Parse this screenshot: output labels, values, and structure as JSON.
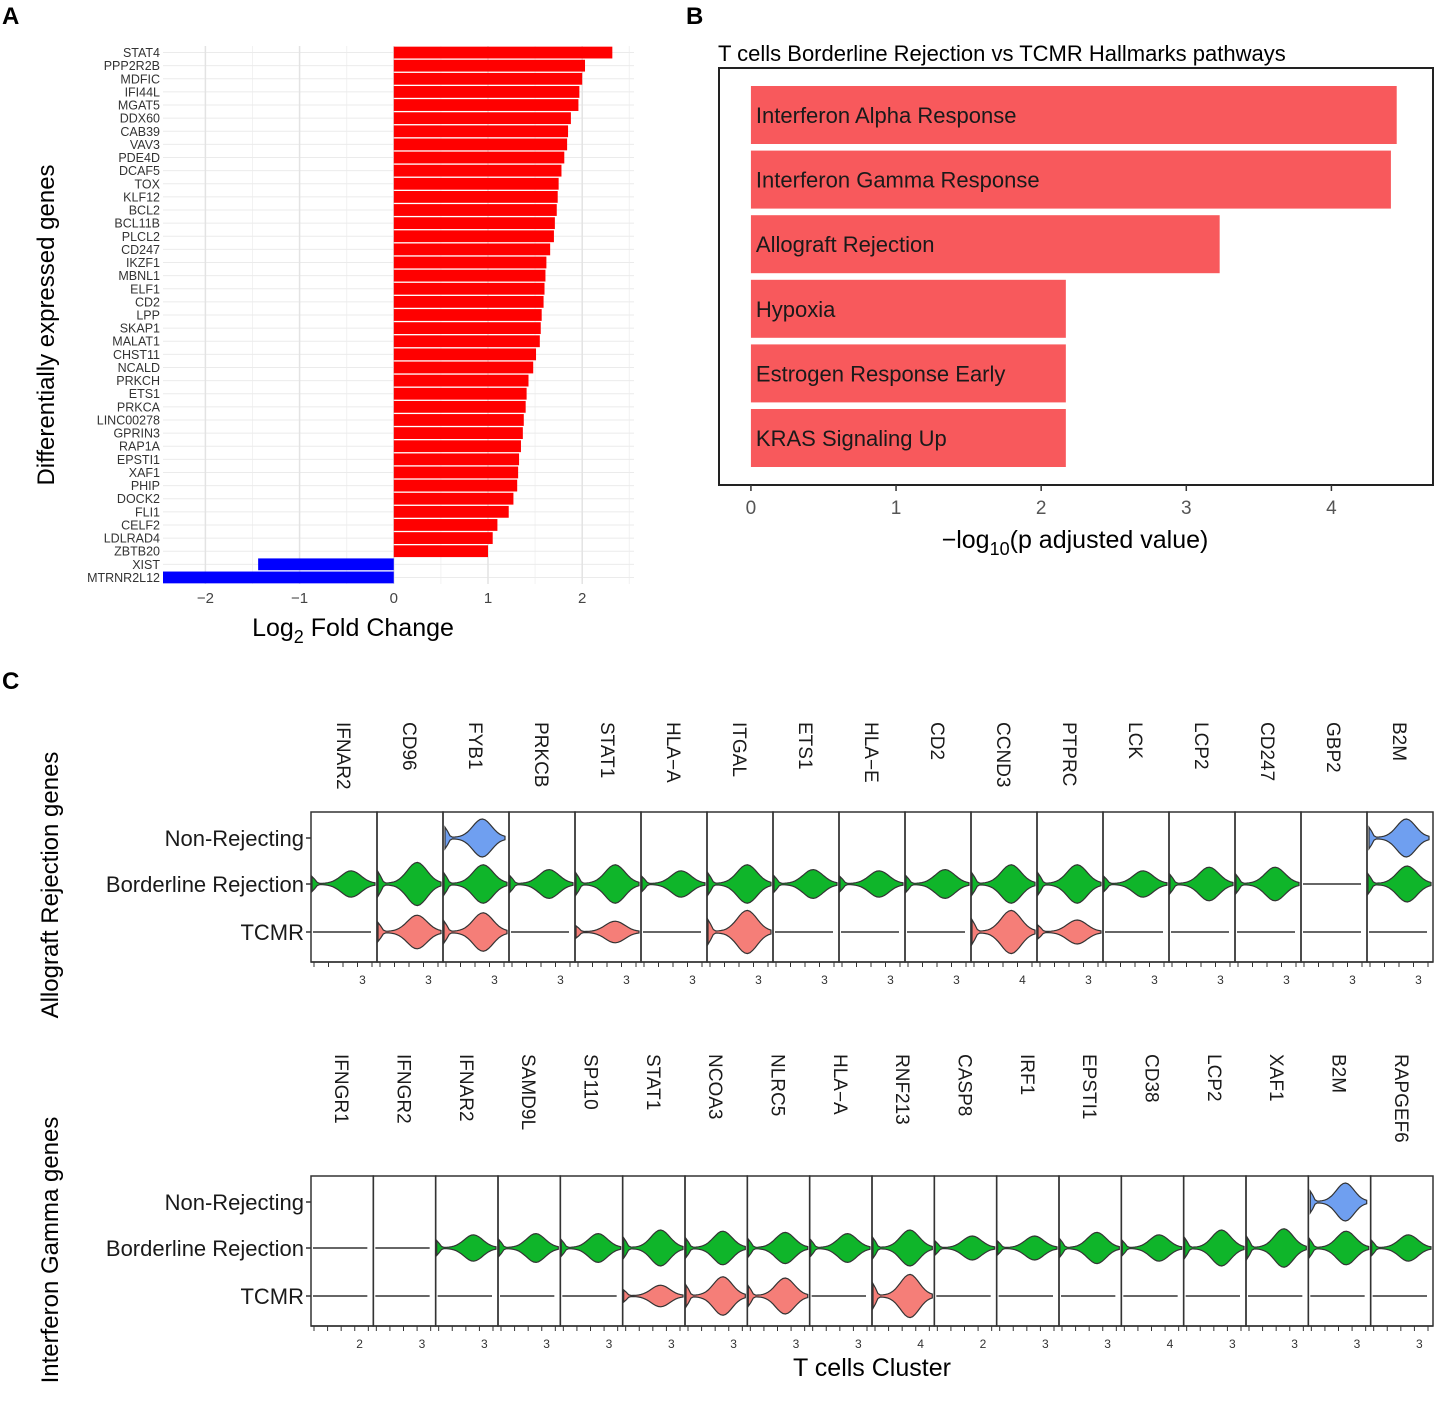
{
  "panel_labels": {
    "a": "A",
    "b": "B",
    "c": "C"
  },
  "colors": {
    "up": "#ff0000",
    "down": "#0000ff",
    "pathway": "#f8595c",
    "nonrej": "#6f9ff0",
    "borderline": "#0fb52a",
    "tcmr": "#f57e78"
  },
  "chart_data": [
    {
      "id": "A",
      "type": "bar",
      "orientation": "horizontal",
      "title": "",
      "xlabel_main": "Log",
      "xlabel_sub": "2",
      "xlabel_rest": " Fold Change",
      "ylabel": "Differentially expressed genes",
      "xlim": [
        -2.45,
        2.55
      ],
      "xticks": [
        -2,
        -1,
        0,
        1,
        2
      ],
      "xtick_labels": [
        "−2",
        "−1",
        "0",
        "1",
        "2"
      ],
      "categories": [
        "STAT4",
        "PPP2R2B",
        "MDFIC",
        "IFI44L",
        "MGAT5",
        "DDX60",
        "CAB39",
        "VAV3",
        "PDE4D",
        "DCAF5",
        "TOX",
        "KLF12",
        "BCL2",
        "BCL11B",
        "PLCL2",
        "CD247",
        "IKZF1",
        "MBNL1",
        "ELF1",
        "CD2",
        "LPP",
        "SKAP1",
        "MALAT1",
        "CHST11",
        "NCALD",
        "PRKCH",
        "ETS1",
        "PRKCA",
        "LINC00278",
        "GPRIN3",
        "RAP1A",
        "EPSTI1",
        "XAF1",
        "PHIP",
        "DOCK2",
        "FLI1",
        "CELF2",
        "LDLRAD4",
        "ZBTB20",
        "XIST",
        "MTRNR2L12"
      ],
      "values": [
        2.32,
        2.03,
        2.0,
        1.97,
        1.96,
        1.88,
        1.85,
        1.84,
        1.81,
        1.78,
        1.75,
        1.74,
        1.73,
        1.71,
        1.7,
        1.66,
        1.62,
        1.61,
        1.6,
        1.59,
        1.57,
        1.56,
        1.55,
        1.51,
        1.48,
        1.43,
        1.41,
        1.4,
        1.38,
        1.37,
        1.35,
        1.33,
        1.32,
        1.31,
        1.27,
        1.22,
        1.1,
        1.05,
        1.0,
        -1.44,
        -2.45
      ]
    },
    {
      "id": "B",
      "type": "bar",
      "orientation": "horizontal",
      "title": "T cells Borderline Rejection vs TCMR Hallmarks pathways",
      "xlabel_main": "−log",
      "xlabel_sub": "10",
      "xlabel_rest": "(p adjusted value)",
      "xlim": [
        -0.22,
        4.7
      ],
      "xticks": [
        0,
        1,
        2,
        3,
        4
      ],
      "xtick_labels": [
        "0",
        "1",
        "2",
        "3",
        "4"
      ],
      "categories": [
        "Interferon Alpha Response",
        "Interferon Gamma Response",
        "Allograft Rejection",
        "Hypoxia",
        "Estrogen Response Early",
        "KRAS Signaling Up"
      ],
      "values": [
        4.45,
        4.41,
        3.23,
        2.17,
        2.17,
        2.17
      ]
    },
    {
      "id": "C1",
      "type": "violin",
      "ylabel": "Allograft Rejection genes",
      "groups": [
        "Non-Rejecting",
        "Borderline Rejection",
        "TCMR"
      ],
      "genes": [
        "IFNAR2",
        "CD96",
        "FYB1",
        "PRKCB",
        "STAT1",
        "HLA−A",
        "ITGAL",
        "ETS1",
        "HLA−E",
        "CD2",
        "CCND3",
        "PTPRC",
        "LCK",
        "LCP2",
        "CD247",
        "GBP2",
        "B2M"
      ],
      "axis_max": [
        "3",
        "3",
        "3",
        "3",
        "3",
        "3",
        "3",
        "3",
        "3",
        "3",
        "4",
        "3",
        "3",
        "3",
        "3",
        "3",
        "3"
      ],
      "nonrej_present": [
        0,
        0,
        1,
        0,
        0,
        0,
        0,
        0,
        0,
        0,
        0,
        0,
        0,
        0,
        0,
        0,
        1
      ],
      "borderline_max_width": [
        0.55,
        0.9,
        0.8,
        0.6,
        0.8,
        0.55,
        0.8,
        0.6,
        0.55,
        0.6,
        0.8,
        0.8,
        0.55,
        0.7,
        0.7,
        0,
        0.75
      ],
      "tcmr_max_width": [
        0,
        0.7,
        0.8,
        0,
        0.45,
        0,
        0.9,
        0,
        0,
        0,
        0.9,
        0.5,
        0,
        0,
        0,
        0,
        0
      ]
    },
    {
      "id": "C2",
      "type": "violin",
      "ylabel": "Interferon Gamma genes",
      "xlabel": "T cells Cluster",
      "groups": [
        "Non-Rejecting",
        "Borderline Rejection",
        "TCMR"
      ],
      "genes": [
        "IFNGR1",
        "IFNGR2",
        "IFNAR2",
        "SAMD9L",
        "SP110",
        "STAT1",
        "NCOA3",
        "NLRC5",
        "HLA−A",
        "RNF213",
        "CASP8",
        "IRF1",
        "EPSTI1",
        "CD38",
        "LCP2",
        "XAF1",
        "B2M",
        "RAPGEF6"
      ],
      "axis_max": [
        "2",
        "3",
        "3",
        "3",
        "3",
        "3",
        "3",
        "3",
        "3",
        "4",
        "2",
        "3",
        "3",
        "4",
        "3",
        "3",
        "3",
        "3"
      ],
      "nonrej_present": [
        0,
        0,
        0,
        0,
        0,
        0,
        0,
        0,
        0,
        0,
        0,
        0,
        0,
        0,
        0,
        0,
        1,
        0
      ],
      "borderline_max_width": [
        0,
        0,
        0.55,
        0.6,
        0.6,
        0.75,
        0.7,
        0.65,
        0.6,
        0.75,
        0.5,
        0.5,
        0.65,
        0.55,
        0.75,
        0.8,
        0.7,
        0.55
      ],
      "tcmr_max_width": [
        0,
        0,
        0,
        0,
        0,
        0.45,
        0.8,
        0.75,
        0,
        0.9,
        0,
        0,
        0,
        0,
        0,
        0,
        0,
        0
      ]
    }
  ]
}
